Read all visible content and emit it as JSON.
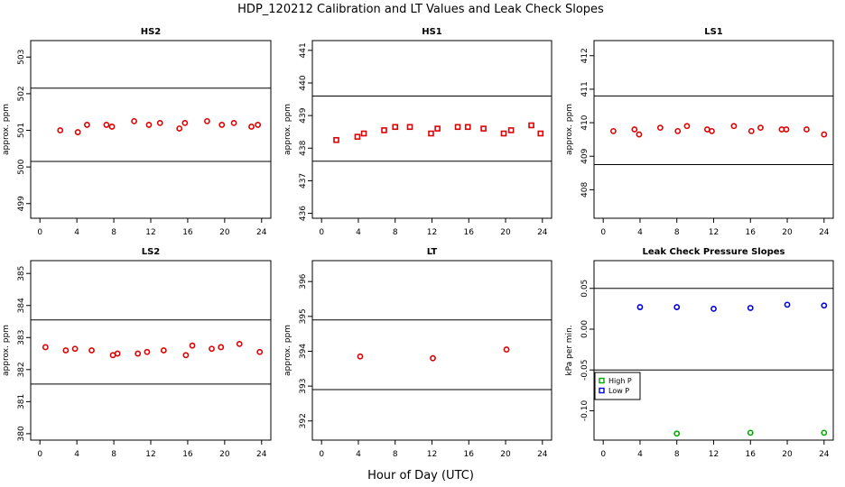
{
  "figure": {
    "title": "HDP_120212  Calibration and LT Values and Leak Check Slopes",
    "xlabel": "Hour of Day (UTC)"
  },
  "colors": {
    "points": "#e00000",
    "high_p": "#00aa00",
    "low_p": "#0000dd",
    "lines": "#000000"
  },
  "chart_data": [
    {
      "type": "scatter",
      "title": "HS2",
      "ylabel": "approx. ppm",
      "xlim": [
        -1,
        25
      ],
      "ylim": [
        498.6,
        503.45
      ],
      "xticks": [
        "0",
        "4",
        "8",
        "12",
        "16",
        "20",
        "24"
      ],
      "yticks": [
        "499",
        "500",
        "501",
        "502",
        "503"
      ],
      "hlines": [
        500.15,
        502.15
      ],
      "series": [
        {
          "marker": "circle",
          "x": [
            2.2,
            4.1,
            5.1,
            7.2,
            7.8,
            10.2,
            11.8,
            13.0,
            15.1,
            15.7,
            18.1,
            19.7,
            21.0,
            22.9,
            23.6
          ],
          "y": [
            501.0,
            500.95,
            501.15,
            501.15,
            501.1,
            501.25,
            501.15,
            501.2,
            501.05,
            501.2,
            501.25,
            501.15,
            501.2,
            501.1,
            501.15
          ]
        }
      ]
    },
    {
      "type": "scatter",
      "title": "HS1",
      "ylabel": "approx. ppm",
      "xlim": [
        -1,
        25
      ],
      "ylim": [
        435.85,
        441.3
      ],
      "xticks": [
        "0",
        "4",
        "8",
        "12",
        "16",
        "20",
        "24"
      ],
      "yticks": [
        "436",
        "437",
        "438",
        "439",
        "440",
        "441"
      ],
      "hlines": [
        437.6,
        439.6
      ],
      "series": [
        {
          "marker": "square",
          "x": [
            1.6,
            3.9,
            4.6,
            6.8,
            8.0,
            9.6,
            11.9,
            12.6,
            14.8,
            15.9,
            17.6,
            19.8,
            20.6,
            22.8,
            23.8
          ],
          "y": [
            438.25,
            438.35,
            438.45,
            438.55,
            438.65,
            438.65,
            438.45,
            438.6,
            438.65,
            438.65,
            438.6,
            438.45,
            438.55,
            438.7,
            438.45
          ]
        }
      ]
    },
    {
      "type": "scatter",
      "title": "LS1",
      "ylabel": "approx. ppm",
      "xlim": [
        -1,
        25
      ],
      "ylim": [
        407.15,
        412.45
      ],
      "xticks": [
        "0",
        "4",
        "8",
        "12",
        "16",
        "20",
        "24"
      ],
      "yticks": [
        "408",
        "409",
        "410",
        "411",
        "412"
      ],
      "hlines": [
        408.75,
        410.8
      ],
      "series": [
        {
          "marker": "circle",
          "x": [
            1.1,
            3.4,
            3.9,
            6.2,
            8.1,
            9.1,
            11.3,
            11.8,
            14.2,
            16.1,
            17.1,
            19.4,
            19.9,
            22.1,
            24.0
          ],
          "y": [
            409.75,
            409.8,
            409.65,
            409.85,
            409.75,
            409.9,
            409.8,
            409.75,
            409.9,
            409.75,
            409.85,
            409.8,
            409.8,
            409.8,
            409.65
          ]
        }
      ]
    },
    {
      "type": "scatter",
      "title": "LS2",
      "ylabel": "approx. ppm",
      "xlim": [
        -1,
        25
      ],
      "ylim": [
        379.8,
        385.4
      ],
      "xticks": [
        "0",
        "4",
        "8",
        "12",
        "16",
        "20",
        "24"
      ],
      "yticks": [
        "380",
        "381",
        "382",
        "383",
        "384",
        "385"
      ],
      "hlines": [
        381.55,
        383.55
      ],
      "series": [
        {
          "marker": "circle",
          "x": [
            0.6,
            2.8,
            3.8,
            5.6,
            7.9,
            8.4,
            10.6,
            11.6,
            13.4,
            15.8,
            16.5,
            18.6,
            19.6,
            21.6,
            23.8
          ],
          "y": [
            382.7,
            382.6,
            382.65,
            382.6,
            382.45,
            382.5,
            382.5,
            382.55,
            382.6,
            382.45,
            382.75,
            382.65,
            382.7,
            382.8,
            382.55
          ]
        }
      ]
    },
    {
      "type": "scatter",
      "title": "LT",
      "ylabel": "approx. ppm",
      "xlim": [
        -1,
        25
      ],
      "ylim": [
        391.45,
        396.6
      ],
      "xticks": [
        "0",
        "4",
        "8",
        "12",
        "16",
        "20",
        "24"
      ],
      "yticks": [
        "392",
        "393",
        "394",
        "395",
        "396"
      ],
      "hlines": [
        392.9,
        394.9
      ],
      "series": [
        {
          "marker": "circle",
          "x": [
            4.2,
            12.1,
            20.1
          ],
          "y": [
            393.85,
            393.8,
            394.05
          ]
        }
      ]
    },
    {
      "type": "scatter",
      "title": "Leak Check Pressure Slopes",
      "ylabel": "kPa per min.",
      "xlim": [
        -1,
        25
      ],
      "ylim": [
        -0.136,
        0.084
      ],
      "xticks": [
        "0",
        "4",
        "8",
        "12",
        "16",
        "20",
        "24"
      ],
      "yticks": [
        "-0.10",
        "-0.05",
        "0.00",
        "0.05"
      ],
      "hlines": [
        -0.05,
        0.05
      ],
      "legend": {
        "position": "bottom-left",
        "entries": [
          "High P",
          "Low P"
        ]
      },
      "series": [
        {
          "name": "High P",
          "marker": "circle",
          "color": "#00aa00",
          "x": [
            8.0,
            16.0,
            24.0
          ],
          "y": [
            -0.128,
            -0.127,
            -0.127
          ]
        },
        {
          "name": "Low P",
          "marker": "circle",
          "color": "#0000dd",
          "x": [
            4.0,
            8.0,
            12.0,
            16.0,
            20.0,
            24.0
          ],
          "y": [
            0.027,
            0.027,
            0.025,
            0.026,
            0.03,
            0.029
          ]
        }
      ]
    }
  ]
}
